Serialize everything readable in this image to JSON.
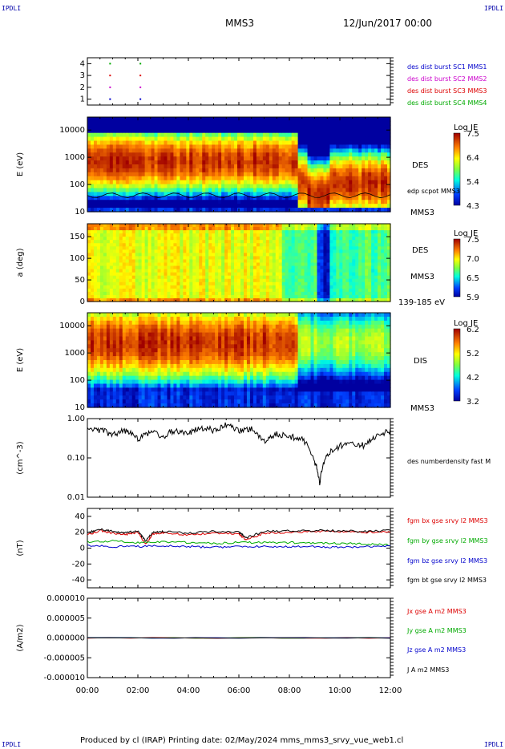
{
  "header": {
    "corner_label": "IPDLI",
    "spacecraft": "MMS3",
    "datetime": "12/Jun/2017 00:00"
  },
  "footer": {
    "text": "Produced by cl (IRAP)   Printing date: 02/May/2024   mms_mms3_srvy_vue_web1.cl"
  },
  "x_axis": {
    "ticks": [
      "00:00",
      "02:00",
      "04:00",
      "06:00",
      "08:00",
      "10:00",
      "12:00"
    ],
    "range_hours": [
      0,
      12
    ]
  },
  "colors": {
    "blue_label": "#0000cc",
    "magenta_label": "#cc00cc",
    "red_label": "#dd0000",
    "green_label": "#00aa00",
    "black_label": "#000000"
  },
  "chart_data": [
    {
      "type": "scatter",
      "panel": "burst-availability",
      "yticks": [
        "4",
        "3",
        "2",
        "1"
      ],
      "ylim": [
        0.5,
        4.5
      ],
      "legend": [
        {
          "label": "des dist burst SC1 MMS1",
          "color": "#0000cc"
        },
        {
          "label": "des dist burst SC2 MMS2",
          "color": "#cc00cc"
        },
        {
          "label": "des dist burst SC3 MMS3",
          "color": "#dd0000"
        },
        {
          "label": "des dist burst SC4 MMS4",
          "color": "#00aa00"
        }
      ],
      "points": [
        {
          "x": 0.9,
          "y": 4,
          "color": "#00aa00"
        },
        {
          "x": 0.9,
          "y": 3,
          "color": "#dd0000"
        },
        {
          "x": 0.9,
          "y": 2,
          "color": "#cc00cc"
        },
        {
          "x": 0.9,
          "y": 1,
          "color": "#0000cc"
        },
        {
          "x": 2.1,
          "y": 4,
          "color": "#00aa00"
        },
        {
          "x": 2.1,
          "y": 3,
          "color": "#dd0000"
        },
        {
          "x": 2.1,
          "y": 2,
          "color": "#cc00cc"
        },
        {
          "x": 2.1,
          "y": 1,
          "color": "#0000cc"
        }
      ]
    },
    {
      "type": "heatmap",
      "panel": "des-energy",
      "ylabel": "E (eV)",
      "yscale": "log",
      "yticks": [
        "10000",
        "1000",
        "100",
        "10"
      ],
      "label": "DES",
      "label2": "edp scpot MMS3",
      "bottom_label": "MMS3",
      "colorbar": {
        "title": "Log JE",
        "ticks": [
          "7.5",
          "6.4",
          "5.4",
          "4.3"
        ]
      }
    },
    {
      "type": "heatmap",
      "panel": "des-pitch",
      "ylabel": "a (deg)",
      "yticks": [
        "150",
        "100",
        "50",
        "0"
      ],
      "label": "DES",
      "label2": "MMS3",
      "bottom_label": "139-185 eV",
      "colorbar": {
        "title": "Log JE",
        "ticks": [
          "7.5",
          "7.0",
          "6.5",
          "5.9"
        ]
      }
    },
    {
      "type": "heatmap",
      "panel": "dis-energy",
      "ylabel": "E (eV)",
      "yscale": "log",
      "yticks": [
        "10000",
        "1000",
        "100",
        "10"
      ],
      "label": "DIS",
      "bottom_label": "MMS3",
      "colorbar": {
        "title": "Log JE",
        "ticks": [
          "6.2",
          "5.2",
          "4.2",
          "3.2"
        ]
      }
    },
    {
      "type": "line",
      "panel": "density",
      "ylabel": "(cm^-3)",
      "yscale": "log",
      "yticks": [
        "1.00",
        "0.10",
        "0.01"
      ],
      "ylim": [
        0.01,
        1.0
      ],
      "series": [
        {
          "name": "des numberdensity fast M",
          "color": "#000000",
          "x": [
            0,
            0.5,
            1,
            1.5,
            2,
            2.5,
            3,
            3.5,
            4,
            4.5,
            5,
            5.5,
            6,
            6.5,
            7,
            7.5,
            8,
            8.5,
            9,
            9.2,
            9.5,
            10,
            10.5,
            11,
            11.5,
            12
          ],
          "values": [
            0.55,
            0.5,
            0.4,
            0.5,
            0.3,
            0.45,
            0.35,
            0.5,
            0.4,
            0.6,
            0.5,
            0.7,
            0.5,
            0.55,
            0.25,
            0.4,
            0.35,
            0.3,
            0.08,
            0.02,
            0.12,
            0.2,
            0.25,
            0.2,
            0.4,
            0.5
          ]
        }
      ]
    },
    {
      "type": "line",
      "panel": "magnetic-field",
      "ylabel": "(nT)",
      "yticks": [
        "40",
        "20",
        "0",
        "-20",
        "-40"
      ],
      "ylim": [
        -50,
        50
      ],
      "series": [
        {
          "name": "fgm bx gse srvy l2 MMS3",
          "color": "#dd0000",
          "x": [
            0,
            0.5,
            1,
            1.5,
            2,
            2.3,
            2.6,
            3,
            4,
            5,
            6,
            6.3,
            7,
            8,
            9,
            10,
            11,
            12
          ],
          "values": [
            17,
            22,
            19,
            17,
            20,
            5,
            18,
            19,
            17,
            19,
            18,
            10,
            19,
            20,
            21,
            21,
            20,
            21
          ]
        },
        {
          "name": "fgm by gse srvy l2 MMS3",
          "color": "#00aa00",
          "x": [
            0,
            1,
            2,
            3,
            4,
            5,
            6,
            7,
            8,
            9,
            10,
            11,
            12
          ],
          "values": [
            8,
            9,
            7,
            8,
            7,
            6,
            7,
            7,
            7,
            6,
            6,
            5,
            4
          ]
        },
        {
          "name": "fgm bz gse srvy l2 MMS3",
          "color": "#0000cc",
          "x": [
            0,
            1,
            2,
            3,
            4,
            5,
            6,
            7,
            8,
            9,
            10,
            11,
            12
          ],
          "values": [
            3,
            2,
            2,
            3,
            2,
            1,
            2,
            2,
            2,
            2,
            1,
            2,
            3
          ]
        },
        {
          "name": "fgm bt gse srvy l2 MMS3",
          "color": "#000000",
          "x": [
            0,
            0.5,
            1,
            1.5,
            2,
            2.3,
            2.6,
            3,
            4,
            5,
            6,
            6.3,
            7,
            8,
            9,
            10,
            11,
            12
          ],
          "values": [
            19,
            24,
            21,
            19,
            22,
            9,
            20,
            21,
            19,
            21,
            20,
            13,
            21,
            22,
            22,
            22,
            21,
            22
          ]
        }
      ]
    },
    {
      "type": "line",
      "panel": "current-density",
      "ylabel": "(A/m2)",
      "yticks": [
        "0.000010",
        "0.000005",
        "0.000000",
        "-0.000005",
        "-0.000010"
      ],
      "ylim": [
        -1e-05,
        1e-05
      ],
      "series": [
        {
          "name": "Jx gse A m2 MMS3",
          "color": "#dd0000",
          "x": [
            0,
            12
          ],
          "values": [
            0,
            0
          ]
        },
        {
          "name": "Jy gse A m2 MMS3",
          "color": "#00aa00",
          "x": [
            0,
            12
          ],
          "values": [
            0,
            0
          ]
        },
        {
          "name": "Jz gse A m2 MMS3",
          "color": "#0000cc",
          "x": [
            0,
            12
          ],
          "values": [
            0,
            0
          ]
        },
        {
          "name": "J A m2 MMS3",
          "color": "#000000",
          "x": [
            0,
            12
          ],
          "values": [
            0,
            0
          ]
        }
      ]
    }
  ]
}
